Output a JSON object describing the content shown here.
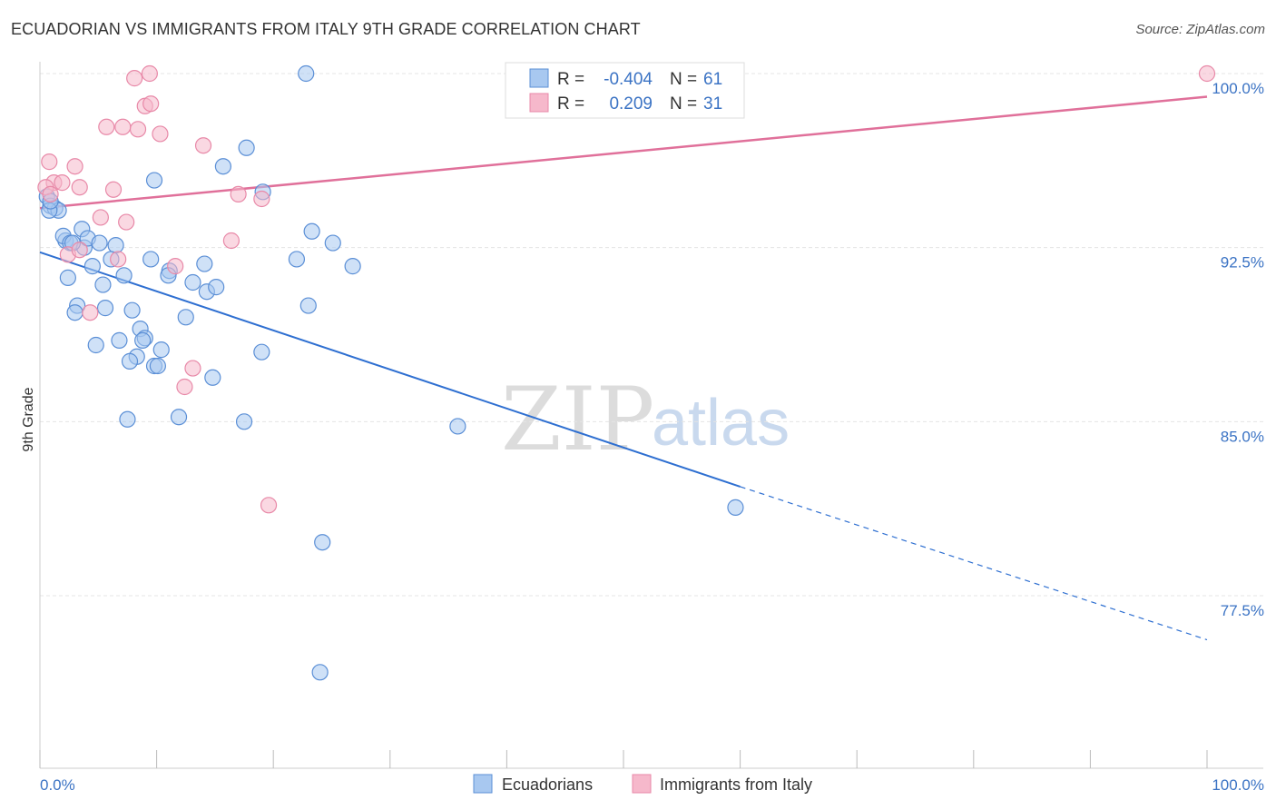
{
  "header": {
    "title": "ECUADORIAN VS IMMIGRANTS FROM ITALY 9TH GRADE CORRELATION CHART",
    "source": "Source: ZipAtlas.com"
  },
  "watermark": {
    "zip": "ZIP",
    "atlas": "atlas"
  },
  "colors": {
    "blue_fill": "#a8c8f0",
    "blue_stroke": "#5b8fd6",
    "blue_line": "#2e6fd1",
    "pink_fill": "#f6b8cb",
    "pink_stroke": "#e889a8",
    "pink_line": "#e0709a",
    "tick_text": "#3b73c4",
    "grid": "#e4e4e4"
  },
  "legend": {
    "rows": [
      {
        "r_label": "R =",
        "r_value": "-0.404",
        "n_label": "N =",
        "n_value": "61"
      },
      {
        "r_label": "R =",
        "r_value": "0.209",
        "n_label": "N =",
        "n_value": "31"
      }
    ]
  },
  "bottom_legend": {
    "series1": "Ecuadorians",
    "series2": "Immigrants from Italy"
  },
  "chart_data": {
    "type": "scatter",
    "title": "ECUADORIAN VS IMMIGRANTS FROM ITALY 9TH GRADE CORRELATION CHART",
    "xlabel": "",
    "ylabel": "9th Grade",
    "xlim": [
      0,
      100
    ],
    "ylim": [
      70.8,
      101.0
    ],
    "x_tick_labels": [
      "0.0%",
      "100.0%"
    ],
    "y_ticks": [
      77.5,
      85.0,
      92.5,
      100.0
    ],
    "y_tick_labels": [
      "77.5%",
      "85.0%",
      "92.5%",
      "100.0%"
    ],
    "grid": true,
    "legend_position": "top-center",
    "series": [
      {
        "name": "Ecuadorians",
        "r": -0.404,
        "n": 61,
        "trend": {
          "x": [
            0,
            60
          ],
          "y": [
            92.3,
            82.2
          ],
          "dashed_extension": {
            "x": [
              60,
              100
            ],
            "y": [
              82.2,
              75.6
            ]
          }
        },
        "points": [
          [
            0.6,
            94.7
          ],
          [
            0.9,
            94.3
          ],
          [
            1.3,
            94.2
          ],
          [
            1.6,
            94.1
          ],
          [
            0.8,
            94.1
          ],
          [
            2.2,
            92.8
          ],
          [
            2.0,
            93.0
          ],
          [
            2.6,
            92.7
          ],
          [
            3.6,
            93.3
          ],
          [
            3.8,
            92.5
          ],
          [
            4.1,
            92.9
          ],
          [
            5.1,
            92.7
          ],
          [
            6.5,
            92.6
          ],
          [
            4.5,
            91.7
          ],
          [
            6.1,
            92.0
          ],
          [
            7.2,
            91.3
          ],
          [
            5.4,
            90.9
          ],
          [
            2.4,
            91.2
          ],
          [
            3.2,
            90.0
          ],
          [
            3.0,
            89.7
          ],
          [
            5.6,
            89.9
          ],
          [
            7.9,
            89.8
          ],
          [
            8.6,
            89.0
          ],
          [
            9.0,
            88.6
          ],
          [
            8.8,
            88.5
          ],
          [
            10.4,
            88.1
          ],
          [
            4.8,
            88.3
          ],
          [
            6.8,
            88.5
          ],
          [
            8.3,
            87.8
          ],
          [
            9.8,
            87.4
          ],
          [
            7.7,
            87.6
          ],
          [
            10.1,
            87.4
          ],
          [
            12.5,
            89.5
          ],
          [
            9.5,
            92.0
          ],
          [
            11.1,
            91.5
          ],
          [
            11.0,
            91.3
          ],
          [
            13.1,
            91.0
          ],
          [
            14.1,
            91.8
          ],
          [
            14.3,
            90.6
          ],
          [
            15.1,
            90.8
          ],
          [
            14.8,
            86.9
          ],
          [
            7.5,
            85.1
          ],
          [
            11.9,
            85.2
          ],
          [
            17.5,
            85.0
          ],
          [
            22.0,
            92.0
          ],
          [
            23.0,
            90.0
          ],
          [
            23.3,
            93.2
          ],
          [
            25.1,
            92.7
          ],
          [
            26.8,
            91.7
          ],
          [
            19.0,
            88.0
          ],
          [
            19.1,
            94.9
          ],
          [
            17.7,
            96.8
          ],
          [
            15.7,
            96.0
          ],
          [
            9.8,
            95.4
          ],
          [
            22.8,
            100.0
          ],
          [
            35.8,
            84.8
          ],
          [
            59.6,
            81.3
          ],
          [
            24.2,
            79.8
          ],
          [
            24.0,
            74.2
          ],
          [
            0.9,
            94.5
          ],
          [
            2.8,
            92.7
          ]
        ]
      },
      {
        "name": "Immigrants from Italy",
        "r": 0.209,
        "n": 31,
        "trend": {
          "x": [
            0,
            100
          ],
          "y": [
            94.2,
            99.0
          ]
        },
        "points": [
          [
            0.8,
            96.2
          ],
          [
            1.2,
            95.3
          ],
          [
            0.5,
            95.1
          ],
          [
            1.9,
            95.3
          ],
          [
            0.9,
            94.8
          ],
          [
            3.0,
            96.0
          ],
          [
            3.4,
            95.1
          ],
          [
            6.3,
            95.0
          ],
          [
            7.1,
            97.7
          ],
          [
            5.7,
            97.7
          ],
          [
            8.4,
            97.6
          ],
          [
            9.0,
            98.6
          ],
          [
            9.5,
            98.7
          ],
          [
            8.1,
            99.8
          ],
          [
            9.4,
            100.0
          ],
          [
            10.3,
            97.4
          ],
          [
            14.0,
            96.9
          ],
          [
            17.0,
            94.8
          ],
          [
            19.0,
            94.6
          ],
          [
            5.2,
            93.8
          ],
          [
            7.4,
            93.6
          ],
          [
            16.4,
            92.8
          ],
          [
            2.4,
            92.2
          ],
          [
            6.7,
            92.0
          ],
          [
            11.6,
            91.7
          ],
          [
            4.3,
            89.7
          ],
          [
            13.1,
            87.3
          ],
          [
            12.4,
            86.5
          ],
          [
            19.6,
            81.4
          ],
          [
            100.0,
            100.0
          ],
          [
            3.4,
            92.4
          ]
        ]
      }
    ]
  }
}
